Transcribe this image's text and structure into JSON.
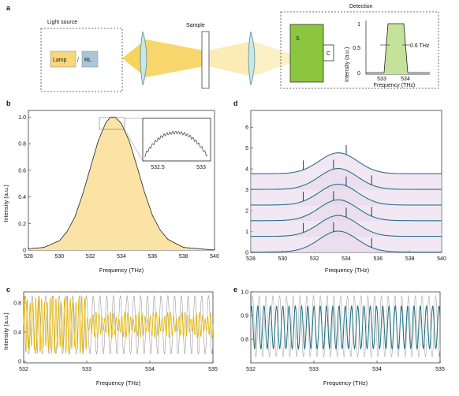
{
  "panel_a": {
    "label": "a",
    "light_source_title": "Light source",
    "lamp_label": "Lamp",
    "slash": "/",
    "rl_label": "RL",
    "sample_label": "Sample",
    "detection_title": "Detection",
    "s_label": "S",
    "c_label": "C",
    "inset": {
      "ylabel": "Intensity (a.u.)",
      "xlabel": "Frequency (THz)",
      "yticks": [
        "0",
        "0.5",
        "1"
      ],
      "xticks": [
        "533",
        "534"
      ],
      "bandwidth_label": "0.6 THz"
    },
    "colors": {
      "lamp": "#f7d77a",
      "rl": "#a9c7d8",
      "beam": "#f6d35c",
      "spectrometer": "#8cc63e",
      "filter": "#c5e29a"
    }
  },
  "panel_b": {
    "label": "b",
    "ylabel": "Intensity (a.u.)",
    "xlabel": "Frequency (THz)",
    "inset_xticks": [
      "532.5",
      "533"
    ]
  },
  "panel_c": {
    "label": "c",
    "ylabel": "Intensity (a.u.)",
    "xlabel": "Frequency (THz)"
  },
  "panel_d": {
    "label": "d",
    "xlabel": "Frequency (THz)"
  },
  "panel_e": {
    "label": "e",
    "xlabel": "Frequency (THz)"
  },
  "chart_data": [
    {
      "id": "b",
      "type": "area",
      "xlim": [
        528,
        540
      ],
      "ylim": [
        0,
        1.05
      ],
      "xticks": [
        528,
        530,
        532,
        534,
        536,
        538,
        540
      ],
      "yticks": [
        0,
        0.2,
        0.4,
        0.6,
        0.8,
        1.0
      ],
      "ytick_labels": [
        "0",
        "0.2",
        "0.4",
        "0.6",
        "0.8",
        "1.0"
      ],
      "xlabel": "Frequency (THz)",
      "ylabel": "Intensity (a.u.)",
      "grid": false,
      "series": [
        {
          "x": [
            528,
            529,
            530,
            530.5,
            531,
            531.5,
            532,
            532.5,
            533,
            533.3,
            533.6,
            534,
            534.5,
            535,
            535.5,
            536,
            536.5,
            537,
            538,
            539,
            540
          ],
          "y": [
            0.01,
            0.02,
            0.07,
            0.14,
            0.25,
            0.42,
            0.62,
            0.82,
            0.96,
            1.0,
            1.0,
            0.95,
            0.82,
            0.63,
            0.43,
            0.26,
            0.15,
            0.08,
            0.02,
            0.01,
            0.0
          ]
        }
      ],
      "fill_color": "#fbe3a6",
      "line_color": "#222222",
      "zoom_inset": {
        "xlim": [
          532.1,
          533.3
        ],
        "xticks": [
          532.5,
          533
        ]
      }
    },
    {
      "id": "c",
      "type": "line",
      "xlim": [
        532,
        535
      ],
      "ylim": [
        -0.02,
        0.95
      ],
      "xticks": [
        532,
        533,
        534,
        535
      ],
      "yticks": [
        0,
        0.4,
        0.8
      ],
      "ytick_labels": [
        "0",
        "0.4",
        "0.8"
      ],
      "xlabel": "Frequency (THz)",
      "ylabel": "Intensity (a.u.)",
      "series": [
        {
          "name": "",
          "color": "#e6b800",
          "x_range": [
            532,
            535
          ],
          "style": "dense oscillation ~0.2-0.9 decaying to 0.3-0.6 after 533"
        },
        {
          "name": "",
          "color": "#888888",
          "x_range": [
            532,
            535
          ],
          "style": "periodic oscillation 0.1-0.9"
        }
      ]
    },
    {
      "id": "d",
      "type": "line",
      "xlim": [
        528,
        540
      ],
      "ylim": [
        0,
        6.8
      ],
      "xticks": [
        528,
        530,
        532,
        534,
        536,
        538,
        540
      ],
      "yticks": [
        0,
        1,
        2,
        3,
        4,
        5,
        6
      ],
      "ytick_labels": [
        "0",
        "1",
        "2",
        "3",
        "4",
        "5",
        "6"
      ],
      "xlabel": "Frequency (THz)",
      "series_offsets": [
        0,
        0.75,
        1.5,
        2.25,
        3.0,
        3.75
      ],
      "line_color": "#2f6f8f",
      "fill_color": "#e5d6ea"
    },
    {
      "id": "e",
      "type": "line",
      "xlim": [
        532,
        535
      ],
      "ylim": [
        0.7,
        1.0
      ],
      "xticks": [
        532,
        533,
        534,
        535
      ],
      "yticks": [
        0.8,
        0.9,
        1.0
      ],
      "ytick_labels": [
        "0.8",
        "0.9",
        "1.0"
      ],
      "xlabel": "Frequency (THz)",
      "series": [
        {
          "name": "",
          "color": "#1f6f80",
          "x_range": [
            532,
            535
          ],
          "style": "periodic oscillation 0.75-0.95"
        },
        {
          "name": "",
          "color": "#999999",
          "x_range": [
            532,
            535
          ],
          "style": "periodic oscillation 0.72-0.99"
        }
      ]
    }
  ]
}
